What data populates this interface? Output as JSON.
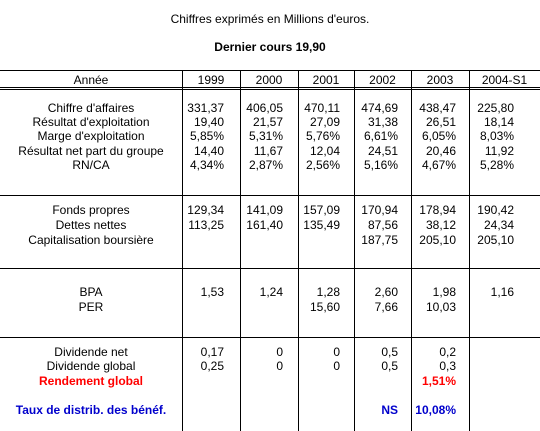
{
  "caption": "Chiffres exprimés en Millions d'euros.",
  "subtitle": "Dernier cours  19,90",
  "header": [
    "Année",
    "1999",
    "2000",
    "2001",
    "2002",
    "2003",
    "2004-S1"
  ],
  "rows": [
    {
      "label": "Chiffre d'affaires",
      "values": [
        "331,37",
        "406,05",
        "470,11",
        "474,69",
        "438,47",
        "225,80"
      ]
    },
    {
      "label": "Résultat d'exploitation",
      "values": [
        "19,40",
        "21,57",
        "27,09",
        "31,38",
        "26,51",
        "18,14"
      ]
    },
    {
      "label": "Marge d'exploitation",
      "values": [
        "5,85%",
        "5,31%",
        "5,76%",
        "6,61%",
        "6,05%",
        "8,03%"
      ]
    },
    {
      "label": "Résultat net part du groupe",
      "values": [
        "14,40",
        "11,67",
        "12,04",
        "24,51",
        "20,46",
        "11,92"
      ]
    },
    {
      "label": "RN/CA",
      "values": [
        "4,34%",
        "2,87%",
        "2,56%",
        "5,16%",
        "4,67%",
        "5,28%"
      ]
    },
    {
      "label": "Fonds propres",
      "values": [
        "129,34",
        "141,09",
        "157,09",
        "170,94",
        "178,94",
        "190,42"
      ]
    },
    {
      "label": "Dettes nettes",
      "values": [
        "113,25",
        "161,40",
        "135,49",
        "87,56",
        "38,12",
        "24,34"
      ]
    },
    {
      "label": "Capitalisation boursière",
      "values": [
        "",
        "",
        "",
        "187,75",
        "205,10",
        "205,10"
      ]
    },
    {
      "label": "BPA",
      "values": [
        "1,53",
        "1,24",
        "1,28",
        "2,60",
        "1,98",
        "1,16"
      ]
    },
    {
      "label": "PER",
      "values": [
        "",
        "",
        "15,60",
        "7,66",
        "10,03",
        ""
      ]
    },
    {
      "label": "Dividende net",
      "values": [
        "0,17",
        "0",
        "0",
        "0,5",
        "0,2",
        ""
      ]
    },
    {
      "label": "Dividende global",
      "values": [
        "0,25",
        "0",
        "0",
        "0,5",
        "0,3",
        ""
      ]
    },
    {
      "label": "Rendement global",
      "values": [
        "",
        "",
        "",
        "",
        "1,51%",
        ""
      ],
      "style": "red"
    },
    {
      "label": "Taux de distrib. des bénéf.",
      "values": [
        "",
        "",
        "",
        "NS",
        "10,08%",
        ""
      ],
      "style": "blue"
    }
  ]
}
